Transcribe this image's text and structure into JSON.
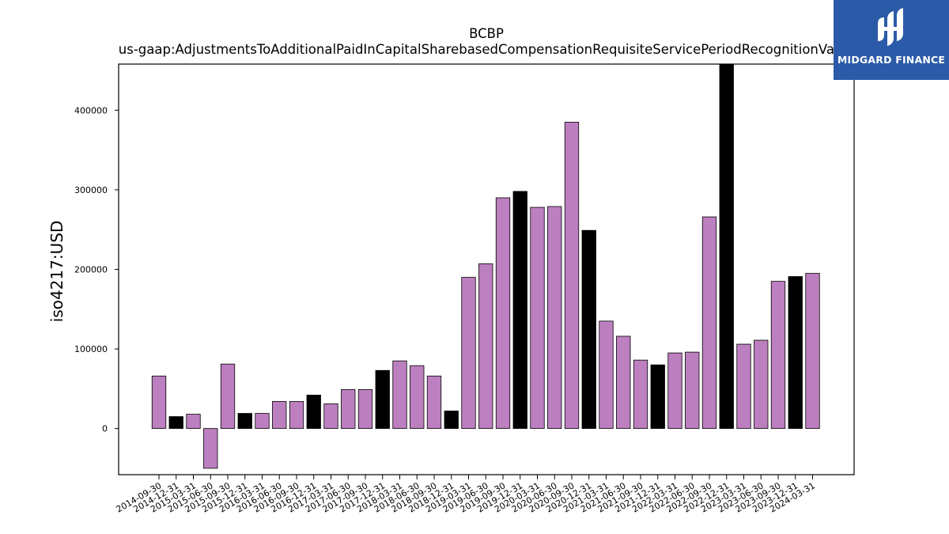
{
  "chart_data": {
    "type": "bar",
    "title": "BCBP",
    "subtitle": "us-gaap:AdjustmentsToAdditionalPaidInCapitalSharebasedCompensationRequisiteServicePeriodRecognitionValue",
    "xlabel": "",
    "ylabel": "iso4217:USD",
    "ylim": [
      -58000,
      458000
    ],
    "yticks": [
      0,
      100000,
      200000,
      300000,
      400000
    ],
    "grid": false,
    "categories": [
      "2014-09-30",
      "2014-12-31",
      "2015-03-31",
      "2015-06-30",
      "2015-09-30",
      "2015-12-31",
      "2016-03-31",
      "2016-06-30",
      "2016-09-30",
      "2016-12-31",
      "2017-03-31",
      "2017-06-30",
      "2017-09-30",
      "2017-12-31",
      "2018-03-31",
      "2018-06-30",
      "2018-09-30",
      "2018-12-31",
      "2019-03-31",
      "2019-06-30",
      "2019-09-30",
      "2019-12-31",
      "2020-03-31",
      "2020-06-30",
      "2020-09-30",
      "2020-12-31",
      "2021-03-31",
      "2021-06-30",
      "2021-09-30",
      "2021-12-31",
      "2022-03-31",
      "2022-06-30",
      "2022-09-30",
      "2022-12-31",
      "2023-03-31",
      "2023-06-30",
      "2023-09-30",
      "2023-12-31",
      "2024-03-31"
    ],
    "values": [
      66000,
      15000,
      18000,
      -50000,
      81000,
      19000,
      19000,
      34000,
      34000,
      42000,
      31000,
      49000,
      49000,
      73000,
      85000,
      79000,
      66000,
      22000,
      190000,
      207000,
      290000,
      298000,
      278000,
      279000,
      385000,
      249000,
      135000,
      116000,
      86000,
      80000,
      95000,
      96000,
      266000,
      465000,
      106000,
      111000,
      185000,
      191000,
      195000
    ],
    "bar_colors": [
      "#bc7fbf",
      "#000000",
      "#bc7fbf",
      "#bc7fbf",
      "#bc7fbf",
      "#000000",
      "#bc7fbf",
      "#bc7fbf",
      "#bc7fbf",
      "#000000",
      "#bc7fbf",
      "#bc7fbf",
      "#bc7fbf",
      "#000000",
      "#bc7fbf",
      "#bc7fbf",
      "#bc7fbf",
      "#000000",
      "#bc7fbf",
      "#bc7fbf",
      "#bc7fbf",
      "#000000",
      "#bc7fbf",
      "#bc7fbf",
      "#bc7fbf",
      "#000000",
      "#bc7fbf",
      "#bc7fbf",
      "#bc7fbf",
      "#000000",
      "#bc7fbf",
      "#bc7fbf",
      "#bc7fbf",
      "#000000",
      "#bc7fbf",
      "#bc7fbf",
      "#bc7fbf",
      "#000000",
      "#bc7fbf"
    ],
    "colors": {
      "accent": "#bc7fbf",
      "highlight": "#000000"
    }
  },
  "logo": {
    "text": "MIDGARD FINANCE",
    "background": "#2b5aa8"
  }
}
